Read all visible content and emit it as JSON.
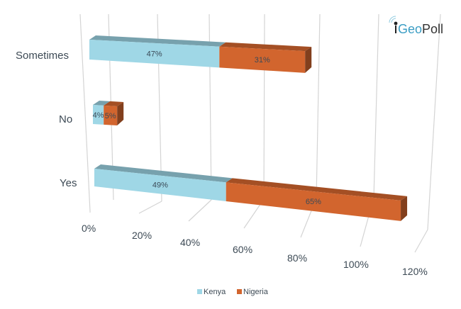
{
  "chart_data": {
    "type": "bar",
    "orientation": "horizontal",
    "stacked": true,
    "three_d": true,
    "categories": [
      "Sometimes",
      "No",
      "Yes"
    ],
    "series": [
      {
        "name": "Kenya",
        "values": [
          47,
          4,
          49
        ],
        "labels": [
          "47%",
          "4%",
          "49%"
        ],
        "color": "#9fd7e6"
      },
      {
        "name": "Nigeria",
        "values": [
          31,
          5,
          65
        ],
        "labels": [
          "31%",
          "5%",
          "65%"
        ],
        "color": "#d2652e"
      }
    ],
    "x_ticks": [
      "0%",
      "20%",
      "40%",
      "60%",
      "80%",
      "100%",
      "120%"
    ],
    "xlim": [
      0,
      120
    ],
    "grid": true,
    "legend": "bottom",
    "title": "",
    "xlabel": "",
    "ylabel": ""
  },
  "logo": {
    "text_geo": "Geo",
    "text_poll": "Poll",
    "prefix": "i"
  }
}
